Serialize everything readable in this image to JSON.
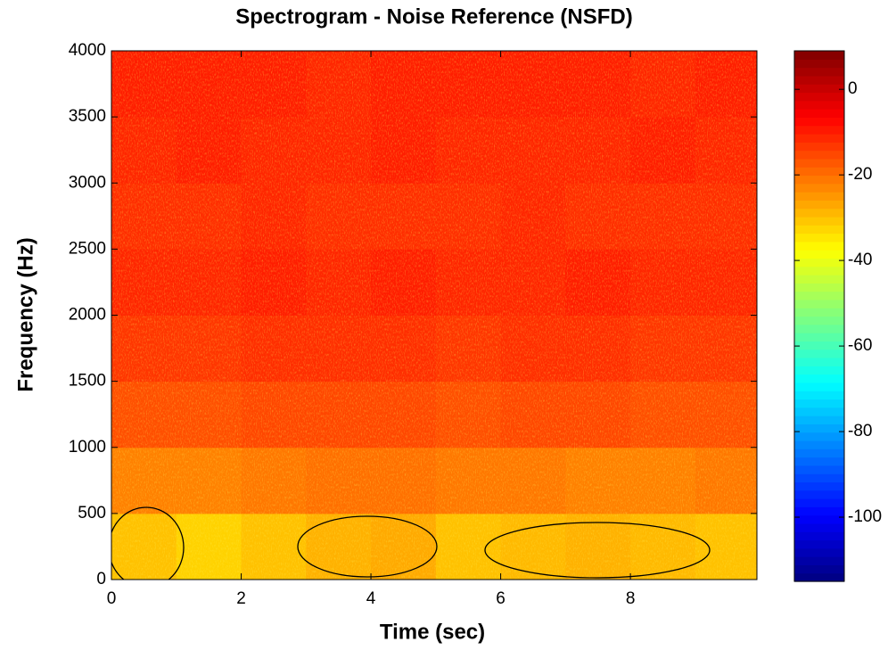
{
  "chart_data": {
    "type": "heatmap",
    "title": "Spectrogram - Noise Reference (NSFD)",
    "xlabel": "Time (sec)",
    "ylabel": "Frequency (Hz)",
    "xbins": [
      0,
      1,
      2,
      3,
      4,
      5,
      6,
      7,
      8,
      9,
      9.95
    ],
    "ybins": [
      0,
      500,
      1000,
      1500,
      2000,
      2500,
      3000,
      3500,
      4000
    ],
    "z": [
      [
        -30,
        -32,
        -30,
        -28,
        -27,
        -30,
        -29,
        -28,
        -29,
        -30
      ],
      [
        -22,
        -22,
        -21,
        -20,
        -20,
        -21,
        -21,
        -22,
        -22,
        -21
      ],
      [
        -16,
        -16,
        -15,
        -15,
        -15,
        -16,
        -15,
        -15,
        -16,
        -16
      ],
      [
        -13,
        -13,
        -12,
        -12,
        -12,
        -13,
        -12,
        -12,
        -13,
        -13
      ],
      [
        -11,
        -11,
        -10,
        -11,
        -10,
        -11,
        -11,
        -10,
        -11,
        -11
      ],
      [
        -12,
        -12,
        -11,
        -12,
        -12,
        -12,
        -11,
        -12,
        -12,
        -12
      ],
      [
        -11,
        -10,
        -11,
        -11,
        -10,
        -11,
        -11,
        -11,
        -10,
        -11
      ],
      [
        -10,
        -10,
        -10,
        -11,
        -10,
        -10,
        -10,
        -10,
        -11,
        -10
      ]
    ],
    "xlim": [
      0,
      9.95
    ],
    "xticks": [
      0,
      2,
      4,
      6,
      8
    ],
    "ylim": [
      0,
      4000
    ],
    "yticks": [
      0,
      500,
      1000,
      1500,
      2000,
      2500,
      3000,
      3500,
      4000
    ],
    "colormap": "jet",
    "clim": [
      -115,
      9
    ],
    "cticks": [
      -100,
      -80,
      -60,
      -40,
      -20,
      0
    ]
  }
}
